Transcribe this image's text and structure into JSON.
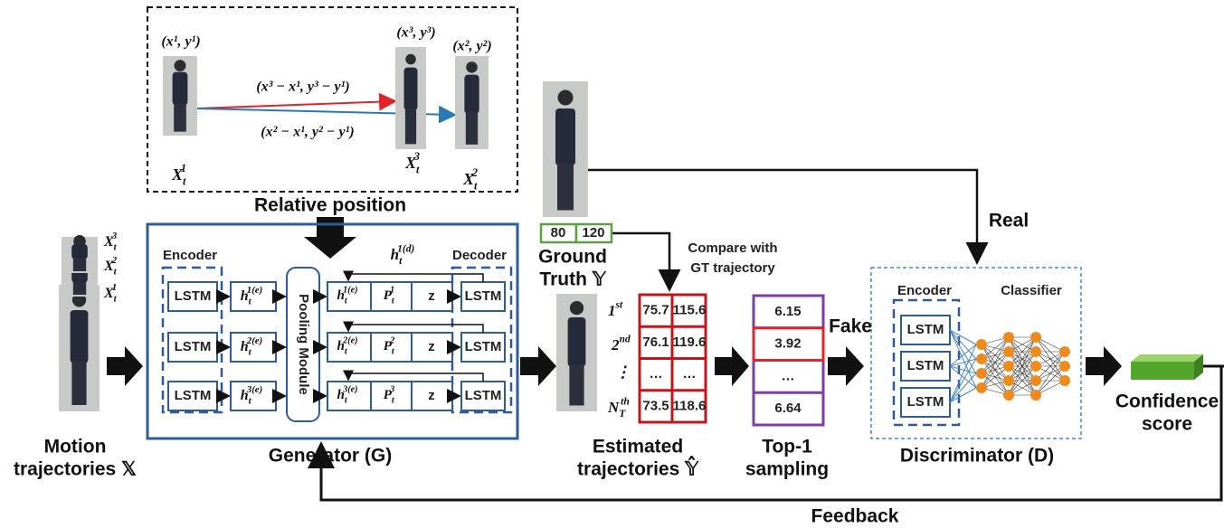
{
  "relative_position": {
    "points": [
      "(x¹, y¹)",
      "(x³, y³)",
      "(x², y²)"
    ],
    "vectors": [
      "(x³ − x¹, y³ − y¹)",
      "(x² − x¹, y² − y¹)"
    ],
    "image_labels": [
      {
        "base": "X",
        "sub": "t",
        "sup": "1"
      },
      {
        "base": "X",
        "sub": "t",
        "sup": "3"
      },
      {
        "base": "X",
        "sub": "t",
        "sup": "2"
      }
    ],
    "caption": "Relative position"
  },
  "input": {
    "labels": [
      {
        "base": "X",
        "sub": "t",
        "sup": "3"
      },
      {
        "base": "X",
        "sub": "t",
        "sup": "2"
      },
      {
        "base": "X",
        "sub": "t",
        "sup": "1"
      }
    ],
    "caption": [
      "Motion",
      "trajectories 𝕏"
    ]
  },
  "generator": {
    "encoder": "Encoder",
    "decoder": "Decoder",
    "encoder_lstm": [
      "LSTM",
      "LSTM",
      "LSTM"
    ],
    "hidden_encoder": [
      {
        "base": "h",
        "sub": "t",
        "sup": "1(e)"
      },
      {
        "base": "h",
        "sub": "t",
        "sup": "2(e)"
      },
      {
        "base": "h",
        "sub": "t",
        "sup": "3(e)"
      }
    ],
    "pooling": "Pooling Module",
    "decoder_rows": [
      {
        "h": {
          "base": "h",
          "sub": "t",
          "sup": "1(e)"
        },
        "p": {
          "base": "P",
          "sub": "t",
          "sup": "1"
        },
        "z": "z",
        "lstm": "LSTM"
      },
      {
        "h": {
          "base": "h",
          "sub": "t",
          "sup": "2(e)"
        },
        "p": {
          "base": "P",
          "sub": "t",
          "sup": "2"
        },
        "z": "z",
        "lstm": "LSTM"
      },
      {
        "h": {
          "base": "h",
          "sub": "t",
          "sup": "3(e)"
        },
        "p": {
          "base": "P",
          "sub": "t",
          "sup": "3"
        },
        "z": "z",
        "lstm": "LSTM"
      }
    ],
    "hidden_decoder": {
      "base": "h",
      "sub": "t",
      "sup": "1(d)"
    },
    "caption": "Generator (G)"
  },
  "ground_truth": {
    "values": [
      "80",
      "120"
    ],
    "caption": [
      "Ground",
      "Truth 𝕐"
    ]
  },
  "compare": [
    "Compare with",
    "GT trajectory"
  ],
  "estimated": {
    "rank_labels": [
      {
        "base": "1",
        "sup": "st"
      },
      {
        "base": "2",
        "sup": "nd"
      },
      {
        "base": "⋮"
      },
      {
        "base": "N",
        "sub": "T",
        "sup": "th"
      }
    ],
    "rows": [
      [
        "75.7",
        "115.6"
      ],
      [
        "76.1",
        "119.6"
      ],
      [
        "…",
        "…"
      ],
      [
        "73.5",
        "118.6"
      ]
    ],
    "caption": [
      "Estimated",
      "trajectories 𝕐̂"
    ]
  },
  "top1": {
    "values": [
      "6.15",
      "3.92",
      "…",
      "6.64"
    ],
    "caption": [
      "Top-1",
      "sampling"
    ]
  },
  "real": "Real",
  "fake": "Fake",
  "discriminator": {
    "encoder": "Encoder",
    "classifier": "Classifier",
    "lstm": [
      "LSTM",
      "LSTM",
      "LSTM"
    ],
    "caption": "Discriminator (D)"
  },
  "output": [
    "Confidence",
    "score"
  ],
  "feedback": "Feedback"
}
